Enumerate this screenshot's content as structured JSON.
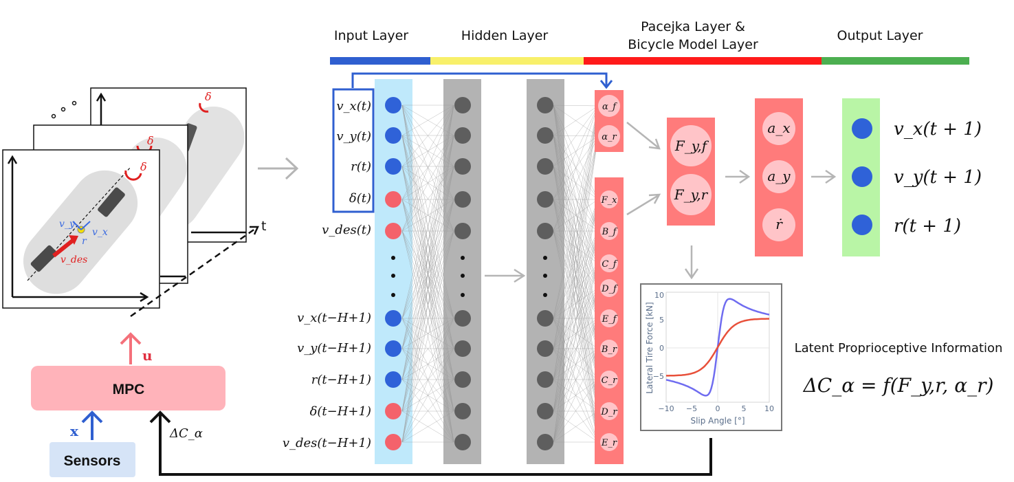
{
  "layers": {
    "input": "Input Layer",
    "hidden": "Hidden Layer",
    "pacejka_line1": "Pacejka Layer &",
    "pacejka_line2": "Bicycle Model Layer",
    "output": "Output Layer"
  },
  "colors": {
    "input_bar": "#2f5fd0",
    "hidden_bar": "#f8f06a",
    "pacejka_bar": "#ff1a1a",
    "output_bar": "#4caf50",
    "input_bg": "#bfe9fb",
    "hidden_bg": "#b3b3b3",
    "pacejka_bg": "#ff7b7b",
    "output_bg": "#b9f5a6",
    "blue_node": "#2f62d8",
    "red_node": "#f4626b",
    "gray_node": "#5e5e5e",
    "mpc_bg": "#ffb3ba",
    "sensors_bg": "#d6e4f7"
  },
  "inputs": {
    "vx": "v_x(t)",
    "vy": "v_y(t)",
    "r": "r(t)",
    "delta": "δ(t)",
    "vdes": "v_des(t)",
    "vx_h": "v_x(t−H+1)",
    "vy_h": "v_y(t−H+1)",
    "r_h": "r(t−H+1)",
    "delta_h": "δ(t−H+1)",
    "vdes_h": "v_des(t−H+1)"
  },
  "pacejka_params": {
    "alpha_f": "α_f",
    "alpha_r": "α_r",
    "list": [
      "F_x",
      "B_f",
      "C_f",
      "D_f",
      "E_f",
      "B_r",
      "C_r",
      "D_r",
      "E_r"
    ]
  },
  "forces": {
    "fyf": "F_y,f",
    "fyr": "F_y,r"
  },
  "accels": {
    "ax": "a_x",
    "ay": "a_y",
    "rdot": "ṙ"
  },
  "outputs": {
    "vx": "v_x(t + 1)",
    "vy": "v_y(t + 1)",
    "r": "r(t + 1)"
  },
  "plot": {
    "ylabel": "Lateral Tire Force [kN]",
    "xlabel": "Slip Angle [°]",
    "xticks": [
      "−10",
      "−5",
      "0",
      "5",
      "10"
    ],
    "yticks": [
      "10",
      "5",
      "0",
      "−5"
    ],
    "series_colors": [
      "#6f6cf0",
      "#e8503a"
    ]
  },
  "latent_title": "Latent Proprioceptive Information",
  "latent_eq": "ΔC_α = f(F_y,r, α_r)",
  "mpc_label": "MPC",
  "sensors_label": "Sensors",
  "u_label": "u",
  "x_label": "x",
  "delta_c_label": "ΔC_α",
  "t_label": "t",
  "car_labels": {
    "vy": "v_y",
    "vx": "v_x",
    "r": "r",
    "vdes": "v_des",
    "delta": "δ"
  }
}
